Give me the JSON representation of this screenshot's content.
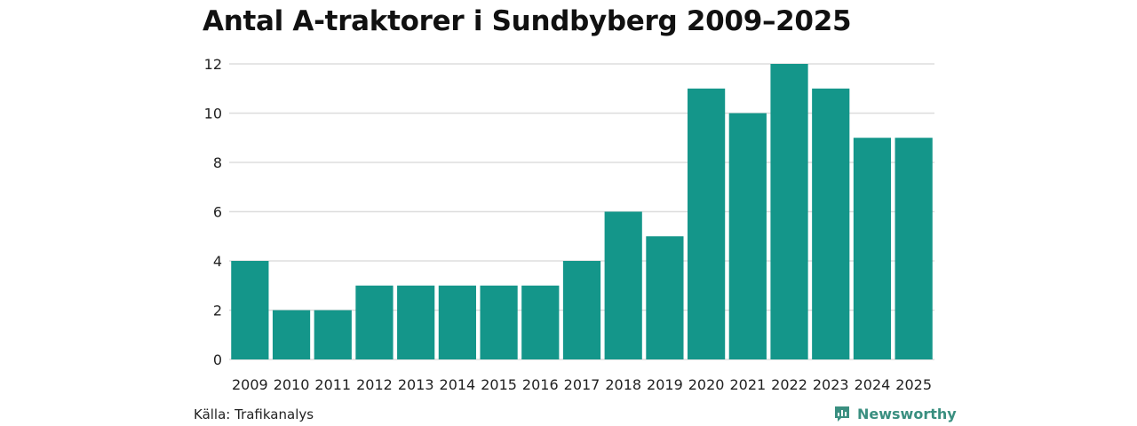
{
  "page": {
    "title": "Antal A-traktorer i Sundbyberg 2009–2025",
    "source": "Källa: Trafikanalys",
    "brand": "Newsworthy"
  },
  "chart_data": {
    "type": "bar",
    "title": "Antal A-traktorer i Sundbyberg 2009–2025",
    "xlabel": "",
    "ylabel": "",
    "categories": [
      "2009",
      "2010",
      "2011",
      "2012",
      "2013",
      "2014",
      "2015",
      "2016",
      "2017",
      "2018",
      "2019",
      "2020",
      "2021",
      "2022",
      "2023",
      "2024",
      "2025"
    ],
    "values": [
      4,
      2,
      2,
      3,
      3,
      3,
      3,
      3,
      4,
      6,
      5,
      11,
      10,
      12,
      11,
      9,
      9
    ],
    "ylim": [
      0,
      12
    ],
    "yticks": [
      0,
      2,
      4,
      6,
      8,
      10,
      12
    ],
    "grid": true,
    "bar_color": "#14968a",
    "grid_color": "#dddddd"
  }
}
